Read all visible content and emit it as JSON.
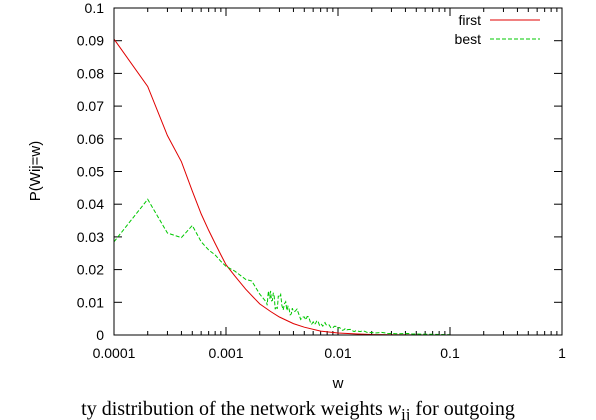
{
  "chart_data": {
    "type": "line",
    "xscale": "log",
    "xlim": [
      0.0001,
      1
    ],
    "ylim": [
      0,
      0.1
    ],
    "xlabel": "w",
    "ylabel": "P(Wij=w)",
    "x_ticks": [
      "0.0001",
      "0.001",
      "0.01",
      "0.1",
      "1"
    ],
    "y_ticks": [
      "0",
      "0.01",
      "0.02",
      "0.03",
      "0.04",
      "0.05",
      "0.06",
      "0.07",
      "0.08",
      "0.09",
      "0.1"
    ],
    "legend_position": "top-right",
    "colors": {
      "first": "#e00000",
      "best": "#00c800"
    },
    "series": [
      {
        "name": "first",
        "x": [
          0.0001,
          0.0002,
          0.0003,
          0.0004,
          0.0005,
          0.0006,
          0.0007,
          0.0008,
          0.0009,
          0.001,
          0.0012,
          0.0015,
          0.002,
          0.0025,
          0.003,
          0.004,
          0.005,
          0.007,
          0.01,
          0.015,
          0.02,
          0.03,
          0.05,
          0.07,
          0.1
        ],
        "y": [
          0.0905,
          0.076,
          0.061,
          0.053,
          0.044,
          0.037,
          0.032,
          0.028,
          0.0245,
          0.0215,
          0.018,
          0.014,
          0.0095,
          0.0072,
          0.0055,
          0.0035,
          0.0024,
          0.0012,
          0.0006,
          0.0003,
          0.00015,
          8e-05,
          3e-05,
          1e-05,
          0
        ]
      },
      {
        "name": "best",
        "x": [
          0.0001,
          0.0002,
          0.0003,
          0.0004,
          0.0005,
          0.0006,
          0.0007,
          0.0008,
          0.0009,
          0.001,
          0.0012,
          0.0015,
          0.0017,
          0.002,
          0.0023,
          0.0025,
          0.0028,
          0.003,
          0.0035,
          0.004,
          0.005,
          0.006,
          0.007,
          0.008,
          0.01,
          0.012,
          0.015,
          0.02,
          0.03,
          0.05,
          0.07,
          0.1
        ],
        "y": [
          0.0285,
          0.0415,
          0.0312,
          0.0298,
          0.0335,
          0.0285,
          0.026,
          0.0245,
          0.0225,
          0.021,
          0.0195,
          0.017,
          0.0165,
          0.0125,
          0.01,
          0.0135,
          0.0085,
          0.0115,
          0.0075,
          0.0072,
          0.0055,
          0.004,
          0.0035,
          0.003,
          0.002,
          0.0016,
          0.0012,
          0.0008,
          0.0005,
          0.0003,
          0.0002,
          0.0001
        ]
      }
    ]
  }
}
